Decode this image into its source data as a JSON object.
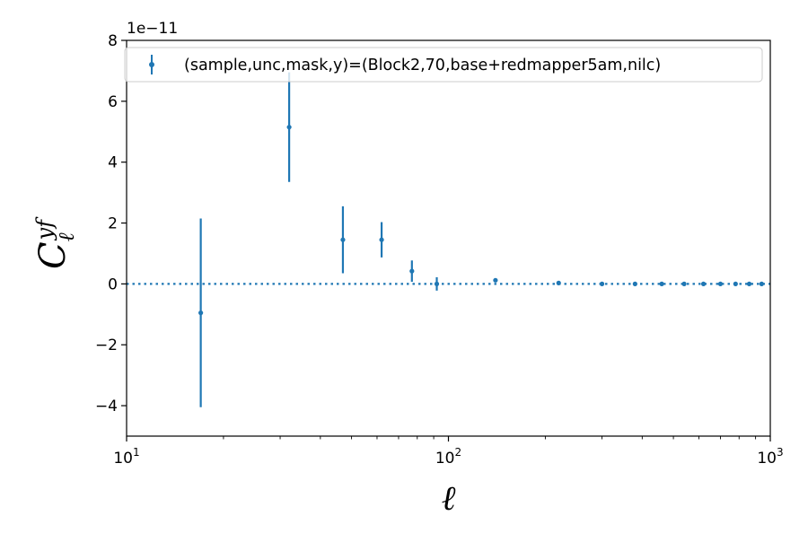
{
  "chart_data": {
    "type": "scatter",
    "xscale": "log",
    "xlim": [
      10,
      1000
    ],
    "ylim": [
      -5e-11,
      8e-11
    ],
    "xlabel": "ℓ",
    "ylabel_main": "C",
    "ylabel_sub": "ℓ",
    "ylabel_sup": "yf",
    "offset_text": "1e−11",
    "x_ticks": [
      {
        "value": 10,
        "base": "10",
        "exp": "1"
      },
      {
        "value": 100,
        "base": "10",
        "exp": "2"
      },
      {
        "value": 1000,
        "base": "10",
        "exp": "3"
      }
    ],
    "y_ticks": [
      {
        "value": -4e-11,
        "label": "−4"
      },
      {
        "value": -2e-11,
        "label": "−2"
      },
      {
        "value": 0,
        "label": "0"
      },
      {
        "value": 2e-11,
        "label": "2"
      },
      {
        "value": 4e-11,
        "label": "4"
      },
      {
        "value": 6e-11,
        "label": "6"
      },
      {
        "value": 8e-11,
        "label": "8"
      }
    ],
    "zero_line": 0,
    "legend": {
      "placement": "top-right",
      "label": "(sample,unc,mask,y)=(Block2,70,base+redmapper5am,nilc)"
    },
    "series": [
      {
        "color": "#1f77b4",
        "points": [
          {
            "x": 17,
            "y": -9.5e-12,
            "err": 3.1e-11
          },
          {
            "x": 32,
            "y": 5.15e-11,
            "err": 1.8e-11
          },
          {
            "x": 47,
            "y": 1.45e-11,
            "err": 1.1e-11
          },
          {
            "x": 62,
            "y": 1.45e-11,
            "err": 5.8e-12
          },
          {
            "x": 77,
            "y": 4.2e-12,
            "err": 3.5e-12
          },
          {
            "x": 92,
            "y": 0.0,
            "err": 2.2e-12
          },
          {
            "x": 140,
            "y": 1.2e-12,
            "err": 5e-13
          },
          {
            "x": 220,
            "y": 3e-13,
            "err": 2e-13
          },
          {
            "x": 300,
            "y": 0.0,
            "err": 1e-13
          },
          {
            "x": 380,
            "y": 0.0,
            "err": 1e-13
          },
          {
            "x": 460,
            "y": 0.0,
            "err": 1e-13
          },
          {
            "x": 540,
            "y": 0.0,
            "err": 5e-14
          },
          {
            "x": 620,
            "y": 0.0,
            "err": 5e-14
          },
          {
            "x": 700,
            "y": 0.0,
            "err": 5e-14
          },
          {
            "x": 780,
            "y": 0.0,
            "err": 5e-14
          },
          {
            "x": 860,
            "y": 0.0,
            "err": 5e-14
          },
          {
            "x": 940,
            "y": 0.0,
            "err": 5e-14
          }
        ]
      }
    ]
  }
}
